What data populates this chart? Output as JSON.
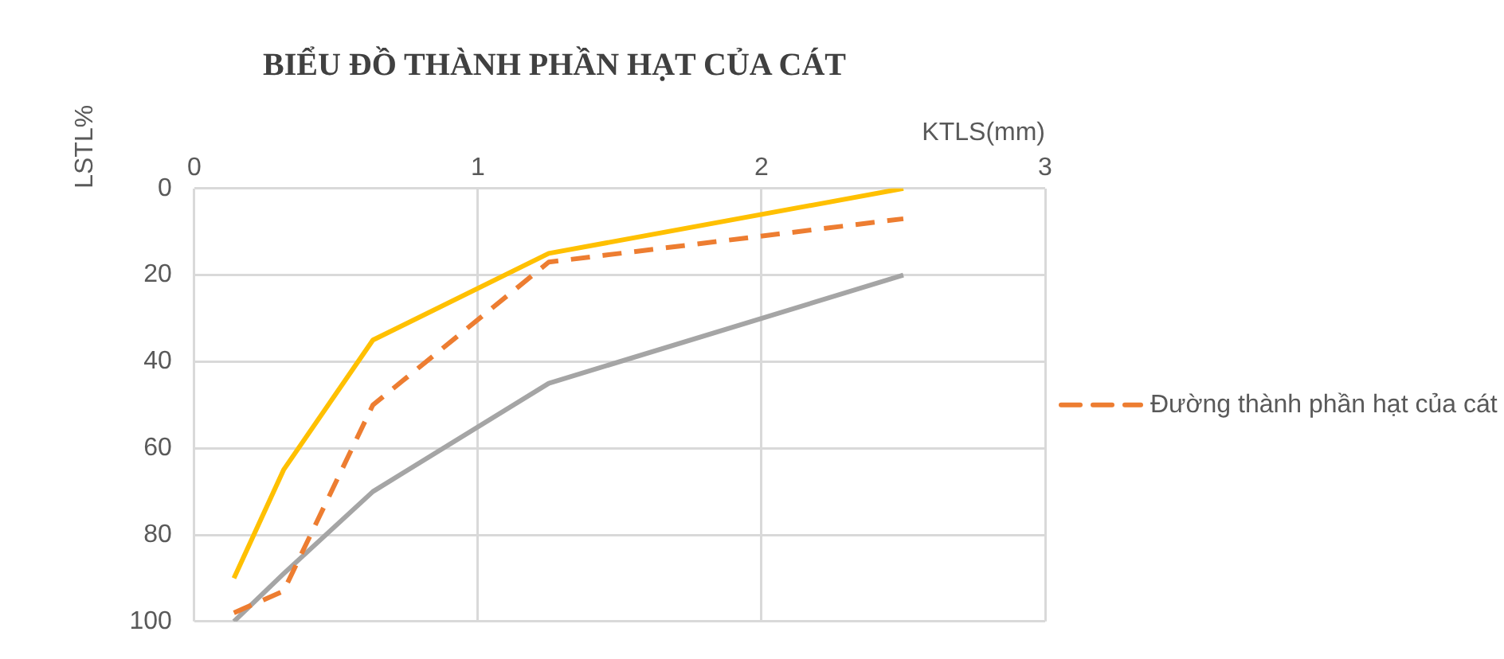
{
  "chart_data": {
    "type": "line",
    "title": "BIỂU ĐỒ THÀNH PHẦN HẠT CỦA CÁT",
    "xlabel": "KTLS(mm)",
    "ylabel": "LSTL%",
    "x": [
      0.14,
      0.315,
      0.63,
      1.25,
      2.5
    ],
    "series": [
      {
        "color": "#ffc000",
        "values": [
          90,
          65,
          35,
          15,
          0
        ]
      },
      {
        "name": "Đường thành phần hạt của cát",
        "color": "#ed7d31",
        "line_style": "dashed",
        "values": [
          98,
          93,
          50,
          17,
          7
        ]
      },
      {
        "color": "#a5a5a5",
        "values": [
          100,
          89,
          70,
          45,
          20
        ]
      }
    ],
    "xlim": [
      0,
      3
    ],
    "xticks": [
      0,
      1,
      2,
      3
    ],
    "ylim": [
      100,
      0
    ],
    "yticks": [
      0,
      20,
      40,
      60,
      80,
      100
    ],
    "grid": true,
    "legend": "right",
    "marker": "none"
  }
}
